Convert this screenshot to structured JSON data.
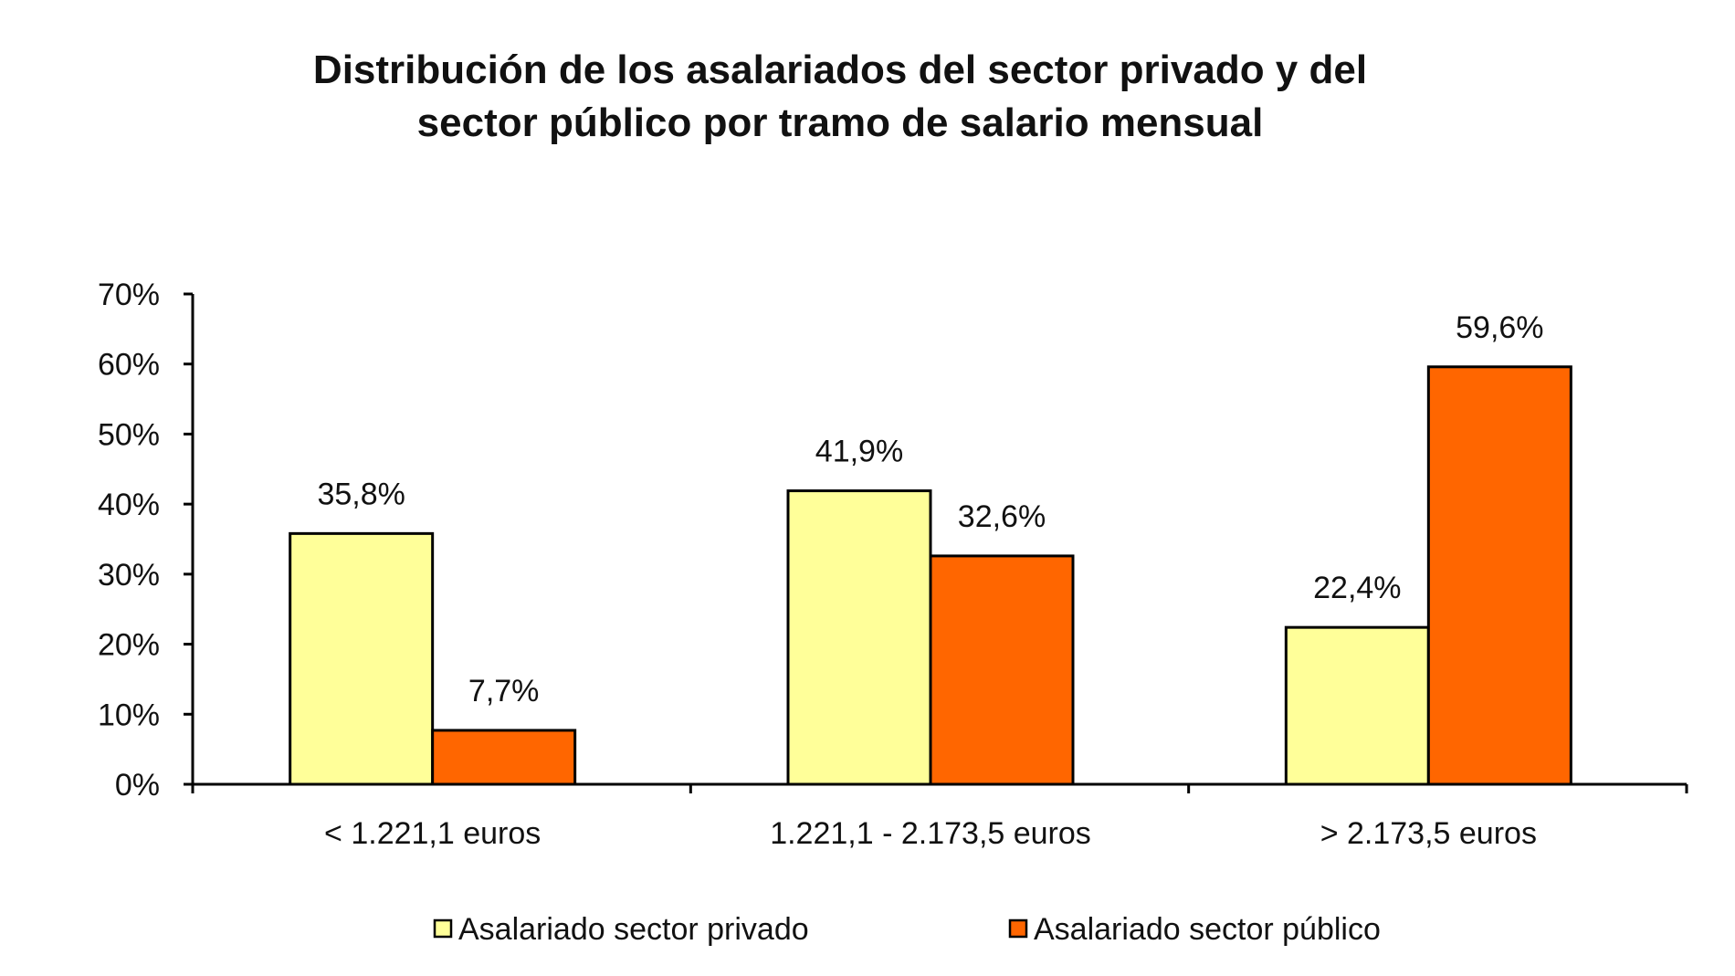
{
  "chart_data": {
    "type": "bar",
    "title_lines": [
      "Distribución de los asalariados del sector privado y del",
      "sector público por tramo de salario mensual"
    ],
    "categories": [
      "< 1.221,1 euros",
      "1.221,1 - 2.173,5 euros",
      "> 2.173,5 euros"
    ],
    "series": [
      {
        "name": "Asalariado sector privado",
        "values": [
          35.8,
          41.9,
          22.4
        ],
        "labels": [
          "35,8%",
          "41,9%",
          "22,4%"
        ],
        "color": "#FFFF99"
      },
      {
        "name": "Asalariado sector público",
        "values": [
          7.7,
          32.6,
          59.6
        ],
        "labels": [
          "7,7%",
          "32,6%",
          "59,6%"
        ],
        "color": "#FF6600"
      }
    ],
    "ylim": [
      0,
      70
    ],
    "yticks": [
      0,
      10,
      20,
      30,
      40,
      50,
      60,
      70
    ],
    "ytick_labels": [
      "0%",
      "10%",
      "20%",
      "30%",
      "40%",
      "50%",
      "60%",
      "70%"
    ],
    "xlabel": "",
    "ylabel": "",
    "grid": false,
    "legend_position": "bottom"
  }
}
